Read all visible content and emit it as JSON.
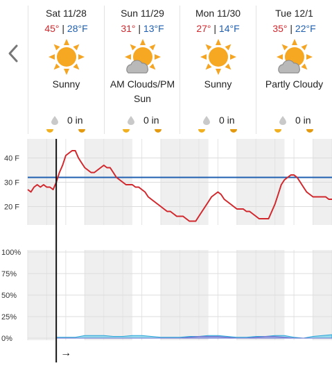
{
  "nav": {
    "prev_icon": "chevron-left-icon"
  },
  "days": [
    {
      "date": "Sat 11/28",
      "high": "45°",
      "low": "28°F",
      "separator": "|",
      "condition": "Sunny",
      "icon": "sun-icon",
      "precip": "0 in"
    },
    {
      "date": "Sun 11/29",
      "high": "31°",
      "low": "13°F",
      "separator": "|",
      "condition": "AM Clouds/PM Sun",
      "icon": "sun-cloud-icon",
      "precip": "0 in"
    },
    {
      "date": "Mon 11/30",
      "high": "27°",
      "low": "14°F",
      "separator": "|",
      "condition": "Sunny",
      "icon": "sun-icon",
      "precip": "0 in"
    },
    {
      "date": "Tue 12/1",
      "high": "35°",
      "low": "22°F",
      "separator": "|",
      "condition": "Partly Cloudy",
      "icon": "sun-cloud-icon",
      "precip": "0 in"
    }
  ],
  "chart_data": [
    {
      "type": "line",
      "title": "",
      "ylabel": "",
      "ylim": [
        13,
        45
      ],
      "y_ticks": [
        "40 F",
        "30 F",
        "20 F"
      ],
      "y_tick_values": [
        40,
        30,
        20
      ],
      "reference_line": 32,
      "hours_total": 96,
      "current_hour": 9,
      "series": [
        {
          "color": "#d0282d",
          "points": [
            [
              0,
              27
            ],
            [
              1,
              26
            ],
            [
              2,
              28
            ],
            [
              3,
              29
            ],
            [
              4,
              28
            ],
            [
              5,
              29
            ],
            [
              6,
              28
            ],
            [
              7,
              28
            ],
            [
              8,
              27
            ],
            [
              9,
              30
            ],
            [
              10,
              34
            ],
            [
              11,
              37
            ],
            [
              12,
              41
            ],
            [
              13,
              42
            ],
            [
              14,
              43
            ],
            [
              15,
              43
            ],
            [
              16,
              40
            ],
            [
              17,
              38
            ],
            [
              18,
              36
            ],
            [
              19,
              35
            ],
            [
              20,
              34
            ],
            [
              21,
              34
            ],
            [
              22,
              35
            ],
            [
              23,
              36
            ],
            [
              24,
              37
            ],
            [
              25,
              36
            ],
            [
              26,
              36
            ],
            [
              27,
              34
            ],
            [
              28,
              32
            ],
            [
              29,
              31
            ],
            [
              30,
              30
            ],
            [
              31,
              29
            ],
            [
              32,
              29
            ],
            [
              33,
              29
            ],
            [
              34,
              28
            ],
            [
              35,
              28
            ],
            [
              36,
              27
            ],
            [
              37,
              26
            ],
            [
              38,
              24
            ],
            [
              39,
              23
            ],
            [
              40,
              22
            ],
            [
              41,
              21
            ],
            [
              42,
              20
            ],
            [
              43,
              19
            ],
            [
              44,
              18
            ],
            [
              45,
              18
            ],
            [
              46,
              17
            ],
            [
              47,
              16
            ],
            [
              48,
              16
            ],
            [
              49,
              16
            ],
            [
              50,
              15
            ],
            [
              51,
              14
            ],
            [
              52,
              14
            ],
            [
              53,
              14
            ],
            [
              54,
              16
            ],
            [
              55,
              18
            ],
            [
              56,
              20
            ],
            [
              57,
              22
            ],
            [
              58,
              24
            ],
            [
              59,
              25
            ],
            [
              60,
              26
            ],
            [
              61,
              25
            ],
            [
              62,
              23
            ],
            [
              63,
              22
            ],
            [
              64,
              21
            ],
            [
              65,
              20
            ],
            [
              66,
              19
            ],
            [
              67,
              19
            ],
            [
              68,
              19
            ],
            [
              69,
              18
            ],
            [
              70,
              18
            ],
            [
              71,
              17
            ],
            [
              72,
              16
            ],
            [
              73,
              15
            ],
            [
              74,
              15
            ],
            [
              75,
              15
            ],
            [
              76,
              15
            ],
            [
              77,
              18
            ],
            [
              78,
              21
            ],
            [
              79,
              25
            ],
            [
              80,
              29
            ],
            [
              81,
              31
            ],
            [
              82,
              32
            ],
            [
              83,
              33
            ],
            [
              84,
              33
            ],
            [
              85,
              32
            ],
            [
              86,
              30
            ],
            [
              87,
              28
            ],
            [
              88,
              26
            ],
            [
              89,
              25
            ],
            [
              90,
              24
            ],
            [
              91,
              24
            ],
            [
              92,
              24
            ],
            [
              93,
              24
            ],
            [
              94,
              24
            ],
            [
              95,
              23
            ],
            [
              96,
              23
            ]
          ]
        }
      ]
    },
    {
      "type": "area",
      "title": "",
      "ylabel": "",
      "ylim": [
        0,
        100
      ],
      "y_ticks": [
        "100%",
        "75%",
        "50%",
        "25%",
        "0%"
      ],
      "y_tick_values": [
        100,
        75,
        50,
        25,
        0
      ],
      "current_hour": 9,
      "series": [
        {
          "fill": "#7fd3e9",
          "stroke": "#2aa3d8",
          "points": [
            [
              9,
              1
            ],
            [
              12,
              1
            ],
            [
              15,
              1
            ],
            [
              18,
              3
            ],
            [
              21,
              3
            ],
            [
              24,
              3
            ],
            [
              27,
              2
            ],
            [
              30,
              2
            ],
            [
              33,
              3
            ],
            [
              36,
              3
            ],
            [
              39,
              2
            ],
            [
              42,
              1
            ],
            [
              45,
              1
            ],
            [
              48,
              1
            ],
            [
              51,
              2
            ],
            [
              54,
              2
            ],
            [
              57,
              3
            ],
            [
              60,
              3
            ],
            [
              63,
              2
            ],
            [
              66,
              1
            ],
            [
              69,
              1
            ],
            [
              72,
              2
            ],
            [
              75,
              2
            ],
            [
              78,
              3
            ],
            [
              81,
              3
            ],
            [
              84,
              1
            ],
            [
              87,
              0
            ],
            [
              90,
              2
            ],
            [
              93,
              3
            ],
            [
              96,
              4
            ]
          ]
        },
        {
          "fill": "#9fa2e0",
          "stroke": "#6b6fcf",
          "points": [
            [
              9,
              0
            ],
            [
              36,
              0
            ],
            [
              39,
              0
            ],
            [
              48,
              0
            ],
            [
              51,
              1
            ],
            [
              54,
              2
            ],
            [
              57,
              2
            ],
            [
              60,
              2
            ],
            [
              63,
              1
            ],
            [
              66,
              0
            ],
            [
              69,
              0
            ],
            [
              72,
              1
            ],
            [
              75,
              2
            ],
            [
              78,
              2
            ],
            [
              81,
              1
            ],
            [
              84,
              0
            ],
            [
              96,
              0
            ]
          ]
        }
      ]
    }
  ],
  "timeline": {
    "arrow": "→"
  }
}
